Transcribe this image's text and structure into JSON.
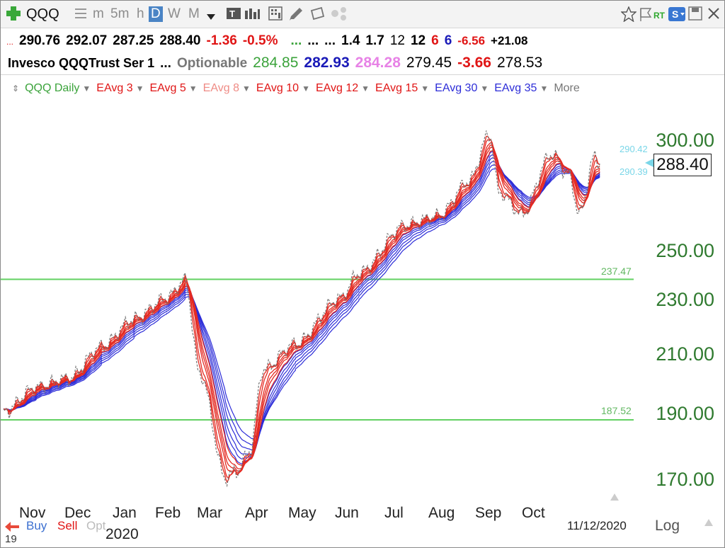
{
  "toolbar": {
    "symbol": "QQQ",
    "timeframes": [
      "m",
      "5m",
      "h",
      "D",
      "W",
      "M"
    ],
    "selected": "D",
    "rt": "RT",
    "s": "S"
  },
  "quote": {
    "prefix": "...",
    "open": "290.76",
    "high": "292.07",
    "low": "287.25",
    "last": "288.40",
    "change": "-1.36",
    "change_pct": "-0.5%",
    "dots": "...",
    "e1": "...",
    "e2": "...",
    "v1": "1.4",
    "v2": "1.7",
    "n1": "12",
    "n2": "12",
    "n3": "6",
    "n4": "6",
    "n5": "-6.56",
    "n6": "+21.08"
  },
  "info": {
    "name": "Invesco QQQTrust Ser 1",
    "dots": "...",
    "optionable": "Optionable",
    "p1": "284.85",
    "p2": "282.93",
    "p3": "284.28",
    "p4": "279.45",
    "p5": "-3.66",
    "p6": "278.53"
  },
  "legend": {
    "items": [
      "QQQ Daily",
      "EAvg 3",
      "EAvg 5",
      "EAvg 8",
      "EAvg 10",
      "EAvg 12",
      "EAvg 15",
      "EAvg 30",
      "EAvg 35"
    ],
    "more": "More"
  },
  "colors": {
    "short_ema": "#e42a22",
    "long_ema": "#2d2dd8",
    "level_line": "#62d162",
    "price": "#777777"
  },
  "chart_data": {
    "type": "line",
    "y_scale": "log",
    "y_ticks": [
      "300.00",
      "250.00",
      "230.00",
      "210.00",
      "190.00",
      "170.00"
    ],
    "x_ticks": [
      "Nov",
      "Dec",
      "Jan",
      "Feb",
      "Mar",
      "Apr",
      "May",
      "Jun",
      "Jul",
      "Aug",
      "Sep",
      "Oct"
    ],
    "year_label": "2020",
    "current_price": "288.40",
    "cyan_upper": "290.42",
    "cyan_lower": "290.39",
    "horizontal_lines": [
      {
        "label": "237.47",
        "value": 237.47
      },
      {
        "label": "187.52",
        "value": 187.52
      }
    ],
    "series": [
      {
        "values": [
          [
            "2019-10-25",
            190
          ],
          [
            "2019-11-15",
            198
          ],
          [
            "2019-12-06",
            201
          ],
          [
            "2019-12-27",
            212
          ],
          [
            "2020-01-17",
            222
          ],
          [
            "2020-02-07",
            230
          ],
          [
            "2020-02-19",
            237
          ],
          [
            "2020-02-28",
            203
          ],
          [
            "2020-03-16",
            170
          ],
          [
            "2020-03-23",
            172
          ],
          [
            "2020-04-01",
            178
          ],
          [
            "2020-04-09",
            204
          ],
          [
            "2020-04-30",
            213
          ],
          [
            "2020-05-29",
            230
          ],
          [
            "2020-06-10",
            240
          ],
          [
            "2020-07-10",
            260
          ],
          [
            "2020-07-31",
            264
          ],
          [
            "2020-08-20",
            280
          ],
          [
            "2020-09-02",
            303
          ],
          [
            "2020-09-08",
            275
          ],
          [
            "2020-09-23",
            265
          ],
          [
            "2020-10-12",
            293
          ],
          [
            "2020-10-23",
            283
          ],
          [
            "2020-10-30",
            265
          ],
          [
            "2020-11-09",
            292
          ],
          [
            "2020-11-12",
            288.4
          ]
        ]
      }
    ]
  },
  "footer": {
    "buy": "Buy",
    "sell": "Sell",
    "opt": "Opt",
    "date": "11/12/2020",
    "log": "Log",
    "year_prefix": "19"
  }
}
